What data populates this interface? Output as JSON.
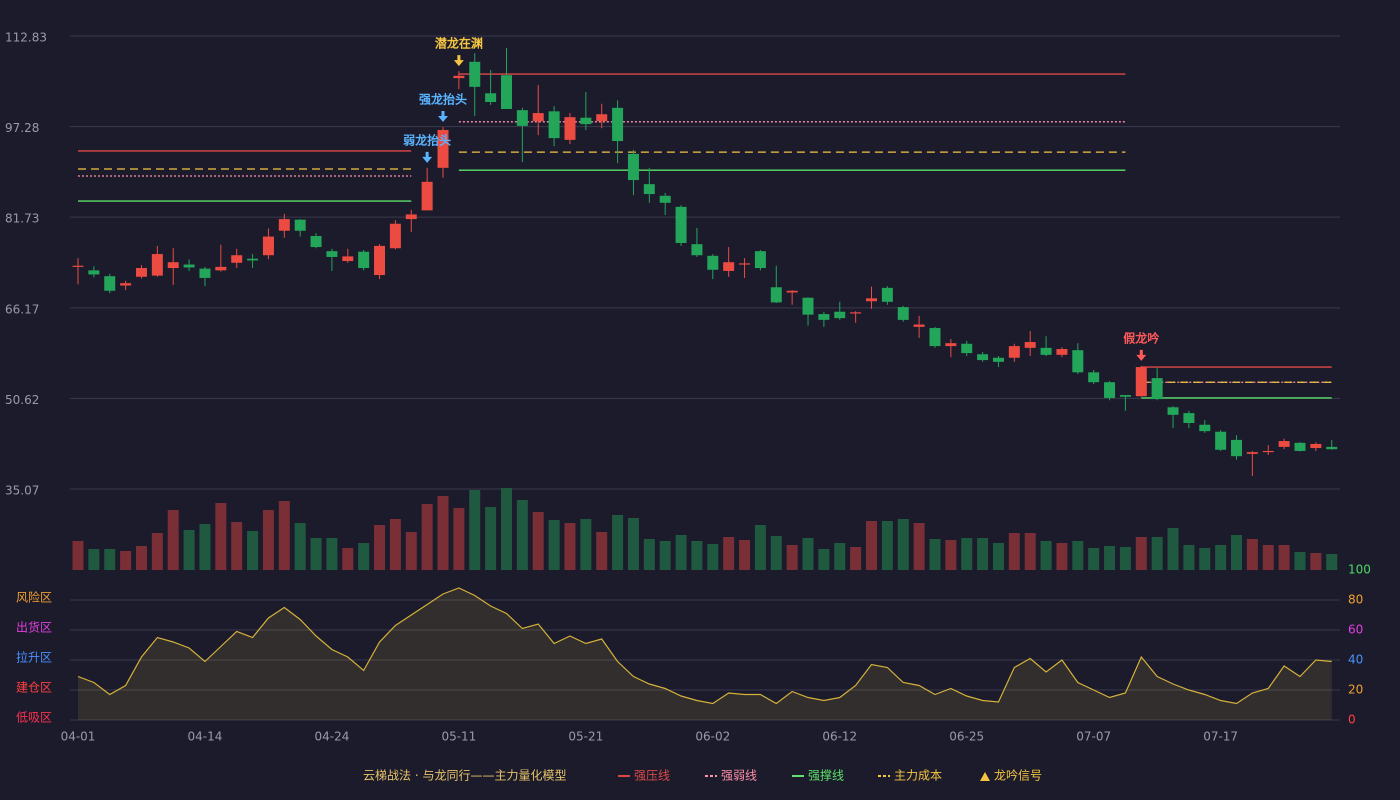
{
  "chart_data": {
    "type": "candlestick",
    "categories": [
      "04-01",
      null,
      null,
      null,
      null,
      null,
      null,
      null,
      "04-14",
      null,
      null,
      null,
      null,
      null,
      null,
      null,
      "04-24",
      null,
      null,
      null,
      null,
      null,
      null,
      null,
      "05-11",
      null,
      null,
      null,
      null,
      null,
      null,
      null,
      "05-21",
      null,
      null,
      null,
      null,
      null,
      null,
      null,
      "06-02",
      null,
      null,
      null,
      null,
      null,
      null,
      null,
      "06-12",
      null,
      null,
      null,
      null,
      null,
      null,
      null,
      "06-25",
      null,
      null,
      null,
      null,
      null,
      null,
      null,
      "07-07",
      null,
      null,
      null,
      null,
      null,
      null,
      null,
      "07-17",
      null,
      null,
      null,
      null,
      null,
      null,
      null
    ],
    "ylim": [
      35.07,
      112.83
    ],
    "yticks": [
      35.07,
      50.62,
      66.17,
      81.73,
      97.28,
      112.83
    ],
    "grid": true,
    "up_color": "#ec4b42",
    "down_color": "#23a55a",
    "open": [
      73.2,
      72.6,
      71.6,
      70.0,
      71.5,
      71.7,
      73.0,
      73.6,
      72.9,
      72.6,
      73.9,
      74.6,
      75.2,
      79.4,
      81.3,
      78.5,
      75.9,
      74.2,
      75.8,
      71.8,
      76.4,
      81.4,
      82.9,
      90.2,
      105.6,
      108.4,
      103.0,
      106.1,
      100.1,
      98.2,
      99.9,
      95.0,
      98.8,
      98.2,
      100.5,
      92.6,
      87.4,
      85.4,
      83.5,
      77.1,
      75.1,
      72.5,
      73.6,
      75.9,
      69.7,
      68.8,
      67.9,
      65.1,
      65.5,
      65.2,
      67.3,
      69.6,
      66.3,
      62.9,
      62.7,
      59.6,
      60.0,
      58.2,
      57.6,
      57.6,
      59.3,
      59.3,
      58.1,
      58.9,
      55.1,
      53.4,
      51.2,
      51.0,
      54.1,
      49.1,
      48.1,
      46.1,
      44.9,
      43.5,
      41.1,
      41.4,
      42.3,
      43.0,
      42.1,
      42.3
    ],
    "close": [
      73.4,
      71.9,
      69.1,
      70.4,
      73.0,
      75.4,
      74.0,
      73.1,
      71.3,
      73.2,
      75.2,
      74.3,
      78.4,
      81.4,
      79.4,
      76.6,
      74.9,
      75.0,
      73.0,
      76.8,
      80.6,
      82.2,
      87.8,
      96.7,
      106.0,
      104.1,
      101.5,
      100.3,
      97.4,
      99.6,
      95.3,
      98.9,
      97.7,
      99.4,
      94.8,
      88.1,
      85.7,
      84.2,
      77.3,
      75.2,
      72.7,
      74.0,
      73.8,
      73.0,
      67.1,
      69.1,
      65.0,
      64.1,
      64.4,
      65.4,
      67.8,
      67.2,
      64.1,
      63.3,
      59.6,
      60.1,
      58.4,
      57.2,
      56.9,
      59.6,
      60.3,
      58.1,
      59.1,
      55.1,
      53.4,
      50.7,
      50.9,
      56.0,
      50.5,
      47.8,
      46.4,
      45.0,
      41.8,
      40.7,
      41.4,
      41.6,
      43.3,
      41.6,
      42.8,
      41.9
    ],
    "high": [
      74.7,
      73.3,
      72.0,
      70.8,
      73.5,
      76.8,
      76.4,
      74.5,
      73.2,
      77.0,
      76.3,
      75.4,
      79.8,
      82.3,
      81.4,
      79.0,
      76.3,
      76.3,
      76.1,
      77.1,
      81.2,
      83.0,
      90.2,
      97.2,
      106.8,
      109.9,
      107.0,
      110.8,
      100.5,
      104.4,
      100.8,
      99.6,
      103.2,
      101.2,
      101.8,
      93.3,
      90.2,
      85.9,
      83.8,
      79.9,
      75.4,
      76.6,
      74.7,
      76.1,
      73.4,
      69.2,
      68.0,
      65.5,
      67.2,
      65.6,
      69.8,
      69.9,
      66.5,
      64.8,
      62.9,
      60.8,
      60.5,
      58.6,
      57.9,
      60.0,
      62.2,
      61.3,
      59.4,
      60.1,
      55.5,
      53.6,
      51.2,
      56.2,
      55.8,
      49.3,
      48.5,
      46.9,
      45.2,
      44.3,
      41.6,
      42.6,
      43.7,
      43.1,
      43.1,
      43.5
    ],
    "low": [
      70.2,
      71.4,
      68.7,
      69.2,
      71.2,
      71.5,
      70.1,
      72.5,
      69.9,
      72.4,
      73.0,
      73.0,
      74.5,
      78.2,
      78.4,
      76.4,
      72.5,
      73.9,
      72.6,
      71.1,
      76.2,
      79.2,
      82.9,
      88.5,
      103.7,
      99.1,
      101.0,
      100.3,
      91.2,
      95.8,
      93.9,
      94.3,
      96.7,
      97.0,
      91.0,
      85.5,
      84.2,
      82.1,
      76.8,
      74.9,
      71.1,
      71.5,
      71.3,
      72.6,
      67.0,
      66.7,
      63.1,
      62.9,
      64.1,
      63.6,
      66.0,
      66.7,
      63.8,
      61.0,
      59.3,
      57.7,
      57.9,
      56.9,
      56.0,
      56.9,
      57.9,
      57.9,
      57.7,
      54.8,
      53.1,
      50.3,
      48.5,
      50.9,
      50.3,
      45.5,
      45.5,
      44.7,
      41.6,
      40.1,
      37.3,
      40.9,
      41.9,
      41.5,
      41.6,
      41.8
    ],
    "series": [
      {
        "name": "强压线",
        "color": "#e04848",
        "style": "solid",
        "values": [
          93.1,
          93.1,
          93.1,
          93.1,
          93.1,
          93.1,
          93.1,
          93.1,
          93.1,
          93.1,
          93.1,
          93.1,
          93.1,
          93.1,
          93.1,
          93.1,
          93.1,
          93.1,
          93.1,
          93.1,
          93.1,
          93.1,
          null,
          null,
          106.3,
          106.3,
          106.3,
          106.3,
          106.3,
          106.3,
          106.3,
          106.3,
          106.3,
          106.3,
          106.3,
          106.3,
          106.3,
          106.3,
          106.3,
          106.3,
          106.3,
          106.3,
          106.3,
          106.3,
          106.3,
          106.3,
          106.3,
          106.3,
          106.3,
          106.3,
          106.3,
          106.3,
          106.3,
          106.3,
          106.3,
          106.3,
          106.3,
          106.3,
          106.3,
          106.3,
          106.3,
          106.3,
          106.3,
          106.3,
          106.3,
          106.3,
          106.3,
          56.0,
          56.0,
          56.0,
          56.0,
          56.0,
          56.0,
          56.0,
          56.0,
          56.0,
          56.0,
          56.0,
          56.0,
          56.0
        ]
      },
      {
        "name": "强弱线",
        "color": "#ff8fa8",
        "style": "dotted",
        "values": [
          88.8,
          88.8,
          88.8,
          88.8,
          88.8,
          88.8,
          88.8,
          88.8,
          88.8,
          88.8,
          88.8,
          88.8,
          88.8,
          88.8,
          88.8,
          88.8,
          88.8,
          88.8,
          88.8,
          88.8,
          88.8,
          88.8,
          null,
          null,
          98.1,
          98.1,
          98.1,
          98.1,
          98.1,
          98.1,
          98.1,
          98.1,
          98.1,
          98.1,
          98.1,
          98.1,
          98.1,
          98.1,
          98.1,
          98.1,
          98.1,
          98.1,
          98.1,
          98.1,
          98.1,
          98.1,
          98.1,
          98.1,
          98.1,
          98.1,
          98.1,
          98.1,
          98.1,
          98.1,
          98.1,
          98.1,
          98.1,
          98.1,
          98.1,
          98.1,
          98.1,
          98.1,
          98.1,
          98.1,
          98.1,
          98.1,
          98.1,
          53.4,
          53.4,
          53.4,
          53.4,
          53.4,
          53.4,
          53.4,
          53.4,
          53.4,
          53.4,
          53.4,
          53.4,
          53.4
        ]
      },
      {
        "name": "强撑线",
        "color": "#5ee06a",
        "style": "solid",
        "values": [
          84.5,
          84.5,
          84.5,
          84.5,
          84.5,
          84.5,
          84.5,
          84.5,
          84.5,
          84.5,
          84.5,
          84.5,
          84.5,
          84.5,
          84.5,
          84.5,
          84.5,
          84.5,
          84.5,
          84.5,
          84.5,
          84.5,
          null,
          null,
          89.8,
          89.8,
          89.8,
          89.8,
          89.8,
          89.8,
          89.8,
          89.8,
          89.8,
          89.8,
          89.8,
          89.8,
          89.8,
          89.8,
          89.8,
          89.8,
          89.8,
          89.8,
          89.8,
          89.8,
          89.8,
          89.8,
          89.8,
          89.8,
          89.8,
          89.8,
          89.8,
          89.8,
          89.8,
          89.8,
          89.8,
          89.8,
          89.8,
          89.8,
          89.8,
          89.8,
          89.8,
          89.8,
          89.8,
          89.8,
          89.8,
          89.8,
          89.8,
          50.7,
          50.7,
          50.7,
          50.7,
          50.7,
          50.7,
          50.7,
          50.7,
          50.7,
          50.7,
          50.7,
          50.7,
          50.7
        ]
      },
      {
        "name": "主力成本",
        "color": "#f5c542",
        "style": "dashed",
        "values": [
          90.0,
          90.0,
          90.0,
          90.0,
          90.0,
          90.0,
          90.0,
          90.0,
          90.0,
          90.0,
          90.0,
          90.0,
          90.0,
          90.0,
          90.0,
          90.0,
          90.0,
          90.0,
          90.0,
          90.0,
          90.0,
          90.0,
          null,
          null,
          92.9,
          92.9,
          92.9,
          92.9,
          92.9,
          92.9,
          92.9,
          92.9,
          92.9,
          92.9,
          92.9,
          92.9,
          92.9,
          92.9,
          92.9,
          92.9,
          92.9,
          92.9,
          92.9,
          92.9,
          92.9,
          92.9,
          92.9,
          92.9,
          92.9,
          92.9,
          92.9,
          92.9,
          92.9,
          92.9,
          92.9,
          92.9,
          92.9,
          92.9,
          92.9,
          92.9,
          92.9,
          92.9,
          92.9,
          92.9,
          92.9,
          92.9,
          92.9,
          53.4,
          53.4,
          53.4,
          53.4,
          53.4,
          53.4,
          53.4,
          53.4,
          53.4,
          53.4,
          53.4,
          53.4,
          53.4
        ]
      }
    ],
    "signals": [
      {
        "label": "弱龙抬头",
        "index": 22,
        "color": "#5ab4ff"
      },
      {
        "label": "强龙抬头",
        "index": 23,
        "color": "#5ab4ff"
      },
      {
        "label": "潜龙在渊",
        "index": 24,
        "color": "#f5c542"
      },
      {
        "label": "假龙吟",
        "index": 67,
        "color": "#ff5a5a"
      }
    ],
    "volume": {
      "up_color": "#7a2e36",
      "down_color": "#1f5a40",
      "values": [
        29,
        21,
        21,
        19,
        24,
        37,
        60,
        40,
        46,
        67,
        48,
        39,
        60,
        69,
        47,
        32,
        32,
        22,
        27,
        45,
        51,
        38,
        66,
        74,
        62,
        80,
        63,
        82,
        70,
        58,
        50,
        47,
        51,
        38,
        55,
        52,
        31,
        29,
        35,
        29,
        26,
        33,
        30,
        45,
        34,
        25,
        32,
        21,
        27,
        23,
        49,
        49,
        51,
        47,
        31,
        30,
        32,
        32,
        27,
        37,
        37,
        29,
        27,
        29,
        22,
        24,
        23,
        33,
        33,
        42,
        25,
        22,
        25,
        35,
        31,
        25,
        25,
        18,
        17,
        16
      ]
    },
    "oscillator": {
      "type": "area",
      "color": "#d4b13a",
      "y2lim": [
        0,
        100
      ],
      "y2ticks": [
        0,
        20,
        40,
        60,
        80,
        100
      ],
      "y2tick_colors": [
        "#ff4040",
        "#f0a030",
        "#4a90ff",
        "#e040e0",
        "#f0a030",
        "#4cd964"
      ],
      "zones": [
        {
          "label": "风险区",
          "value": 80,
          "color": "#f0a030"
        },
        {
          "label": "出货区",
          "value": 60,
          "color": "#e040e0"
        },
        {
          "label": "拉升区",
          "value": 40,
          "color": "#4a90ff"
        },
        {
          "label": "建仓区",
          "value": 20,
          "color": "#ff4040"
        },
        {
          "label": "低吸区",
          "value": 0,
          "color": "#ff3050"
        }
      ],
      "values": [
        29,
        25,
        17,
        23,
        42,
        55,
        52,
        48,
        39,
        49,
        59,
        55,
        68,
        75,
        67,
        56,
        47,
        42,
        33,
        52,
        63,
        70,
        77,
        84,
        88,
        83,
        76,
        71,
        61,
        64,
        51,
        56,
        51,
        54,
        39,
        29,
        24,
        21,
        16,
        13,
        11,
        18,
        17,
        17,
        11,
        19,
        15,
        13,
        15,
        23,
        37,
        35,
        25,
        23,
        17,
        21,
        16,
        13,
        12,
        35,
        41,
        32,
        40,
        25,
        20,
        15,
        18,
        42,
        29,
        24,
        20,
        17,
        13,
        11,
        18,
        21,
        36,
        29,
        40,
        39
      ]
    },
    "legend_title": "云梯战法 · 与龙同行——主力量化模型",
    "signal_legend": "龙吟信号",
    "signal_legend_color": "#f5c542"
  }
}
